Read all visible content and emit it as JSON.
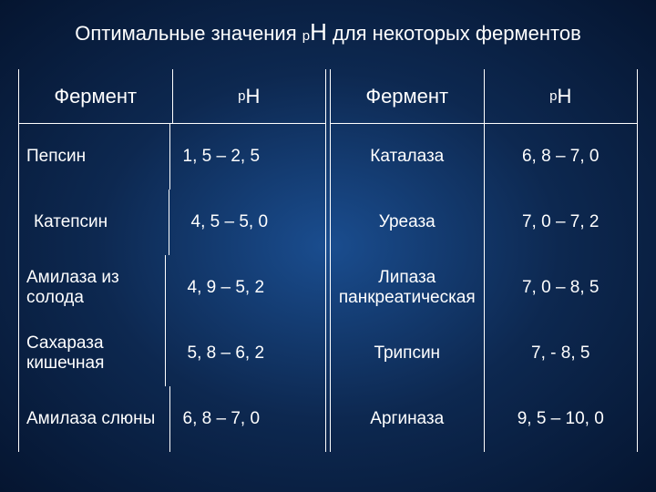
{
  "title": {
    "prefix": "Оптимальные значения ",
    "p": "р",
    "h": "Н",
    "suffix": " для некоторых ферментов"
  },
  "headers": {
    "enzyme": "Фермент",
    "ph_p": "р",
    "ph_h": "Н"
  },
  "left": [
    {
      "name": "Пепсин",
      "ph": "1, 5 – 2, 5",
      "nameAlign": "left",
      "phAlign": "left"
    },
    {
      "name": "Катепсин",
      "ph": "4, 5 – 5, 0",
      "nameAlign": "leftIndent",
      "phAlign": "leftIndent"
    },
    {
      "name": "Амилаза из солода",
      "ph": "4, 9 – 5, 2",
      "nameAlign": "left",
      "phAlign": "leftIndent"
    },
    {
      "name": "Сахараза кишечная",
      "ph": "5, 8 – 6, 2",
      "nameAlign": "left",
      "phAlign": "leftIndent"
    },
    {
      "name": "Амилаза слюны",
      "ph": "6, 8 – 7, 0",
      "nameAlign": "left",
      "phAlign": "left"
    }
  ],
  "right": [
    {
      "name": "Каталаза",
      "ph": "6, 8 – 7, 0",
      "nameAlign": "center",
      "phAlign": "center"
    },
    {
      "name": "Уреаза",
      "ph": "7, 0 – 7, 2",
      "nameAlign": "center",
      "phAlign": "center"
    },
    {
      "name": "Липаза панкреатическая",
      "ph": "7, 0 – 8, 5",
      "nameAlign": "center",
      "phAlign": "center"
    },
    {
      "name": "Трипсин",
      "ph": "7, - 8, 5",
      "nameAlign": "center",
      "phAlign": "center"
    },
    {
      "name": "Аргиназа",
      "ph": "9, 5 – 10, 0",
      "nameAlign": "center",
      "phAlign": "center"
    }
  ]
}
